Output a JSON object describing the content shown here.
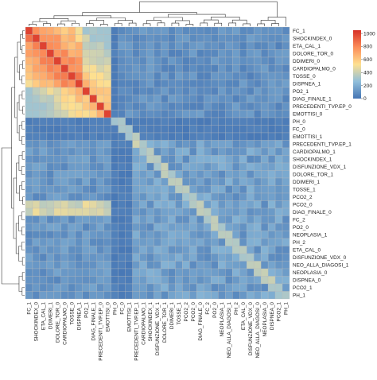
{
  "chart_data": {
    "type": "heatmap",
    "title": "",
    "xlabel": "",
    "ylabel": "",
    "row_labels": [
      "FC_1",
      "SHOCKINDEX_0",
      "ETA_CAL_1",
      "DOLORE_TOR_0",
      "DDIMERI_0",
      "CARDIOPALMO_0",
      "TOSSE_0",
      "DISPNEA_1",
      "PO2_1",
      "DIAG_FINALE_1",
      "PRECEDENTI_TVP.EP_0",
      "EMOTTISI_0",
      "PH_0",
      "FC_0",
      "EMOTTISI_1",
      "PRECEDENTI_TVP.EP_1",
      "CARDIOPALMO_1",
      "SHOCKINDEX_1",
      "DISFUNZIONE_VDX_1",
      "DOLORE_TOR_1",
      "DDIMERI_1",
      "TOSSE_1",
      "PCO2_2",
      "PCO2_0",
      "DIAG_FINALE_0",
      "FC_2",
      "PO2_0",
      "NEOPLASIA_1",
      "PH_2",
      "ETA_CAL_0",
      "DISFUNZIONE_VDX_0",
      "NEO_ALLA_DIAGOSI_1",
      "NEOPLASIA_0",
      "DISPNEA_0",
      "PCO2_1",
      "PH_1"
    ],
    "column_labels": [
      "FC_1",
      "SHOCKINDEX_0",
      "ETA_CAL_1",
      "DDIMERI_1",
      "DOLORE_TOR_0",
      "CARDIOPALMO_0",
      "TOSSE_0",
      "DISPNEA_1",
      "PO2_1",
      "DIAG_FINALE_1",
      "PRECEDENTI_TVP.EP_0",
      "EMOTTISI_0",
      "PH_0",
      "FC_0",
      "EMOTTISI_1",
      "PRECEDENTI_TVP.EP_1",
      "CARDIOPALMO_1",
      "SHOCKINDEX_1",
      "DISFUNZIONE_VDX_1",
      "DOLORE_TOR_1",
      "DDIMERI_1",
      "TOSSE_1",
      "PCO2_2",
      "PCO2_0",
      "DIAG_FINALE_0",
      "FC_2",
      "PO2_0",
      "NEOPLASIA_1",
      "NEO_ALLA_DIAGOSI_1",
      "PH_2",
      "ETA_CAL_0",
      "DISFUNZIONE_VDX_0",
      "NEO_ALLA_DIAGOSI_0",
      "NEOPLASIA_0",
      "DISPNEA_0",
      "PCO2_1",
      "PH_1"
    ],
    "color_scale": {
      "min": 0,
      "max": 1050,
      "ticks": [
        0,
        200,
        400,
        600,
        800,
        1000
      ],
      "colors": [
        "#4575b4",
        "#91bfdb",
        "#fee090",
        "#fc8d59",
        "#d73027"
      ]
    },
    "legend": "top-right",
    "grid": true
  }
}
